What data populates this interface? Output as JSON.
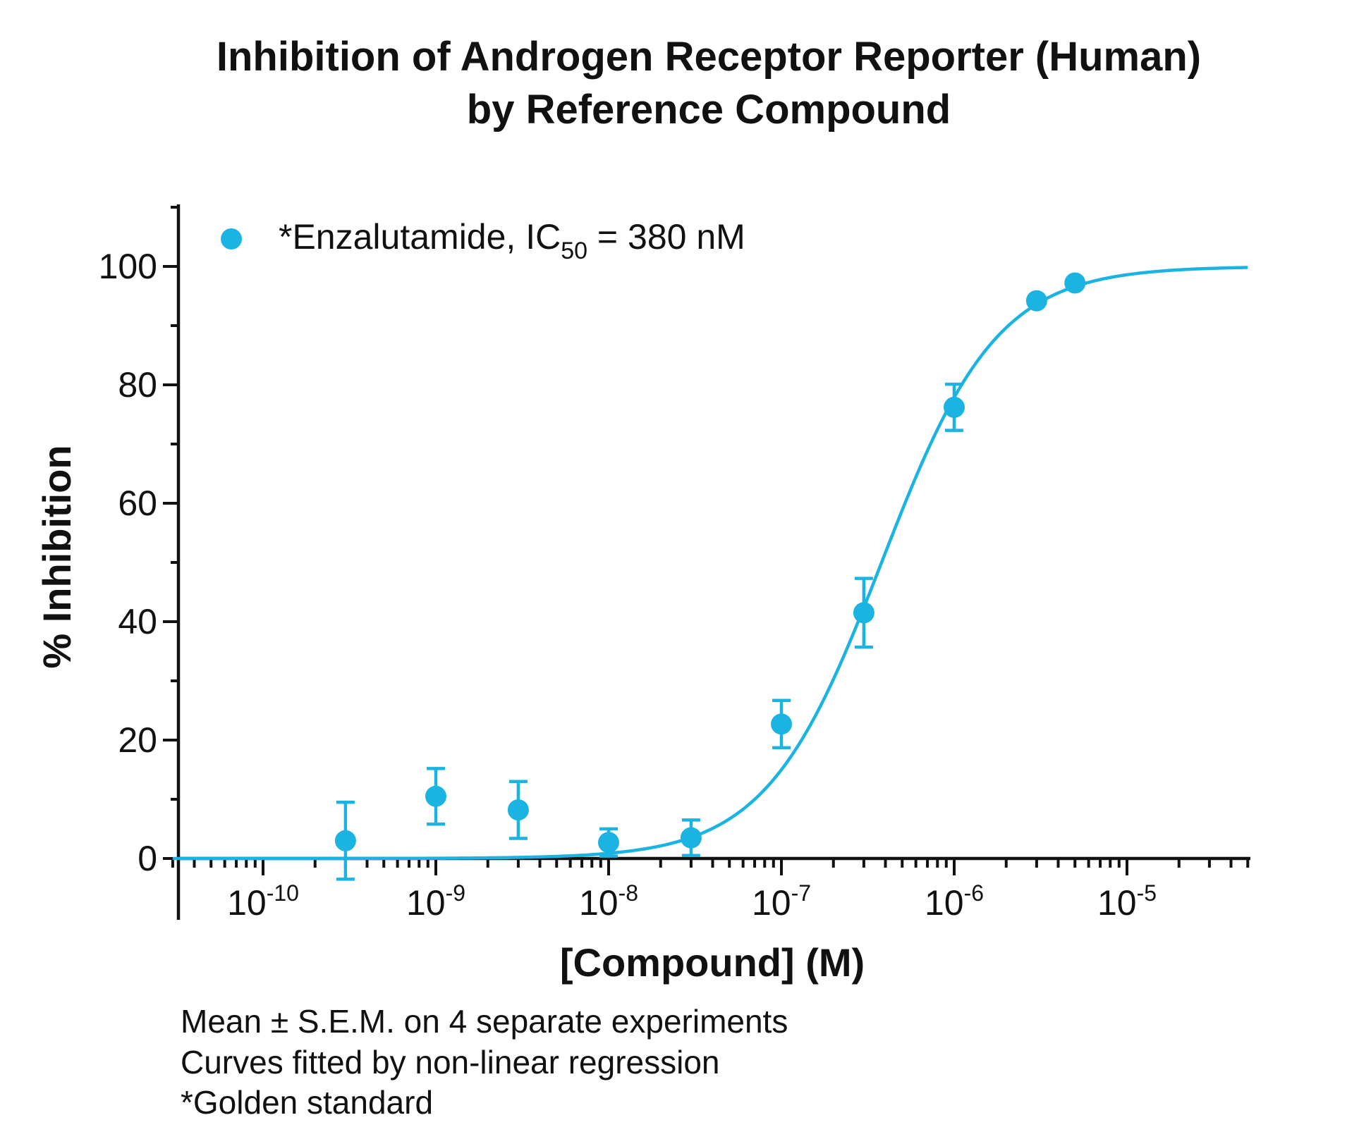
{
  "chart_data": {
    "type": "scatter",
    "title": [
      "Inhibition of Androgen Receptor Reporter (Human)",
      "by Reference Compound"
    ],
    "xlabel": "[Compound] (M)",
    "ylabel": "% Inhibition",
    "x_scale": "log",
    "xlim": [
      3e-11,
      5e-05
    ],
    "ylim": [
      0,
      110
    ],
    "x_ticks": [
      {
        "base": "10",
        "exp": "-10",
        "value": 1e-10
      },
      {
        "base": "10",
        "exp": "-9",
        "value": 1e-09
      },
      {
        "base": "10",
        "exp": "-8",
        "value": 1e-08
      },
      {
        "base": "10",
        "exp": "-7",
        "value": 1e-07
      },
      {
        "base": "10",
        "exp": "-6",
        "value": 1e-06
      },
      {
        "base": "10",
        "exp": "-5",
        "value": 1e-05
      }
    ],
    "y_ticks": [
      "0",
      "20",
      "40",
      "60",
      "80",
      "100"
    ],
    "legend_position": "top-left",
    "series": [
      {
        "name": "*Enzalutamide, IC50 = 380 nM",
        "legend_parts": {
          "prefix": "*Enzalutamide, IC",
          "sub": "50",
          "suffix": " = 380 nM"
        },
        "color": "#1ab3e2",
        "x": [
          3e-10,
          1e-09,
          3e-09,
          1e-08,
          3e-08,
          1e-07,
          3e-07,
          1e-06,
          3e-06,
          5e-06
        ],
        "y": [
          3,
          10.5,
          8.2,
          2.7,
          3.5,
          22.7,
          41.5,
          76.2,
          94.2,
          97.2
        ],
        "sem": [
          6.5,
          4.7,
          4.8,
          2.3,
          3.0,
          4.0,
          5.8,
          3.9,
          0,
          0
        ],
        "fit": {
          "model": "four-parameter logistic",
          "bottom": 0,
          "top": 100,
          "ic50": 3.8e-07,
          "hill": 1.3
        }
      }
    ],
    "grid": false
  },
  "footnotes": [
    "Mean ± S.E.M. on 4 separate experiments",
    "Curves fitted by non-linear regression",
    "*Golden standard"
  ]
}
